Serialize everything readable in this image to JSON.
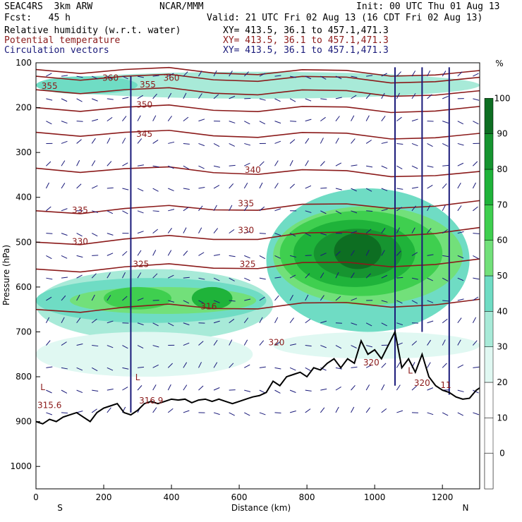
{
  "header": {
    "model": "SEAC4RS  3km ARW",
    "org": "NCAR/MMM",
    "init": "Init: 00 UTC Thu 01 Aug 13",
    "fcst": "Fcst:   45 h",
    "valid": "Valid: 21 UTC Fri 02 Aug 13 (16 CDT Fri 02 Aug 13)",
    "field1": "Relative humidity (w.r.t. water)",
    "field2": "Potential temperature",
    "field3": "Circulation vectors",
    "xs1": "XY= 413.5, 36.1 to 457.1,471.3",
    "xs2": "XY= 413.5, 36.1 to 457.1,471.3",
    "xs3": "XY= 413.5, 36.1 to 457.1,471.3"
  },
  "colors": {
    "rh": "#000000",
    "theta": "#8B1A1A",
    "vectors": "#1a1a7a",
    "terrain": "#000000"
  },
  "chart_data": {
    "type": "heatmap",
    "xlabel": "Distance (km)",
    "ylabel": "Pressure (hPa)",
    "xlim": [
      0,
      1310
    ],
    "ylim": [
      1050,
      100
    ],
    "xticks": [
      0,
      200,
      400,
      600,
      800,
      1000,
      1200
    ],
    "yticks": [
      100,
      200,
      300,
      400,
      500,
      600,
      700,
      800,
      900,
      1000
    ],
    "x_end_labels": {
      "left": "S",
      "right": "N"
    },
    "colorbar": {
      "unit": "%",
      "levels": [
        0,
        10,
        20,
        30,
        40,
        50,
        60,
        70,
        80,
        90,
        100
      ],
      "colors": [
        "#ffffff",
        "#ffffff",
        "#ffffff",
        "#e0f8f2",
        "#a8ead8",
        "#6fdcc4",
        "#72e07a",
        "#3fcf4f",
        "#1fb33a",
        "#169430",
        "#0d6e22"
      ]
    },
    "theta_labels": [
      {
        "x": 40,
        "p": 158,
        "text": "355"
      },
      {
        "x": 220,
        "p": 140,
        "text": "360"
      },
      {
        "x": 330,
        "p": 155,
        "text": "355"
      },
      {
        "x": 400,
        "p": 140,
        "text": "360"
      },
      {
        "x": 320,
        "p": 200,
        "text": "350"
      },
      {
        "x": 320,
        "p": 265,
        "text": "345"
      },
      {
        "x": 640,
        "p": 345,
        "text": "340"
      },
      {
        "x": 130,
        "p": 435,
        "text": "335"
      },
      {
        "x": 620,
        "p": 420,
        "text": "335"
      },
      {
        "x": 130,
        "p": 505,
        "text": "330"
      },
      {
        "x": 620,
        "p": 480,
        "text": "330"
      },
      {
        "x": 310,
        "p": 555,
        "text": "325"
      },
      {
        "x": 625,
        "p": 555,
        "text": "325"
      },
      {
        "x": 510,
        "p": 650,
        "text": "316"
      },
      {
        "x": 710,
        "p": 730,
        "text": "320"
      },
      {
        "x": 990,
        "p": 775,
        "text": "320"
      },
      {
        "x": 1140,
        "p": 820,
        "text": "320"
      },
      {
        "x": 40,
        "p": 870,
        "text": "315.6"
      },
      {
        "x": 340,
        "p": 860,
        "text": "316.9"
      },
      {
        "x": 1210,
        "p": 825,
        "text": "11"
      }
    ],
    "low_markers": [
      {
        "x": 20,
        "p": 830,
        "text": "L"
      },
      {
        "x": 300,
        "p": 808,
        "text": "L"
      },
      {
        "x": 1105,
        "p": 793,
        "text": "L"
      }
    ],
    "terrain_profile": {
      "x": [
        0,
        20,
        40,
        60,
        80,
        100,
        120,
        140,
        160,
        180,
        200,
        220,
        240,
        260,
        280,
        300,
        320,
        340,
        360,
        380,
        400,
        420,
        440,
        460,
        480,
        500,
        520,
        540,
        560,
        580,
        600,
        620,
        640,
        660,
        680,
        700,
        720,
        740,
        760,
        780,
        800,
        820,
        840,
        860,
        880,
        900,
        920,
        940,
        960,
        980,
        1000,
        1020,
        1040,
        1060,
        1080,
        1100,
        1120,
        1140,
        1160,
        1180,
        1200,
        1220,
        1240,
        1260,
        1280,
        1300,
        1310
      ],
      "p": [
        900,
        905,
        895,
        900,
        890,
        885,
        880,
        890,
        900,
        880,
        870,
        865,
        860,
        880,
        885,
        875,
        860,
        855,
        860,
        855,
        850,
        852,
        850,
        858,
        852,
        850,
        855,
        850,
        855,
        860,
        855,
        850,
        845,
        842,
        835,
        810,
        820,
        800,
        795,
        790,
        800,
        780,
        785,
        770,
        760,
        780,
        760,
        770,
        720,
        750,
        740,
        760,
        730,
        700,
        780,
        760,
        790,
        750,
        800,
        820,
        830,
        835,
        845,
        850,
        848,
        830,
        825
      ]
    }
  }
}
